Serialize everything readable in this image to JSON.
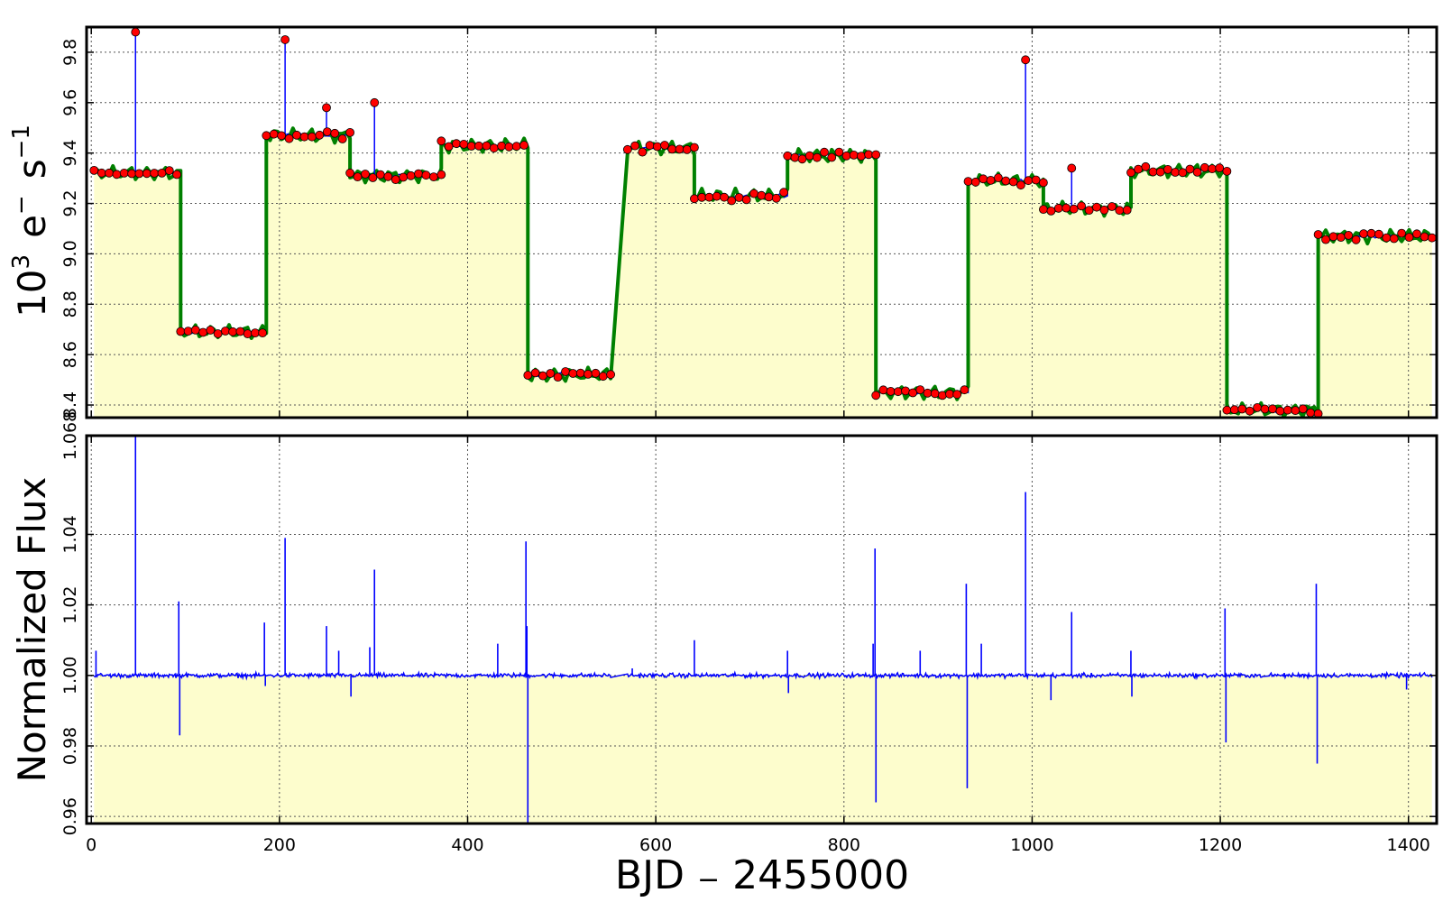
{
  "colors": {
    "fill": "#fdfdcd",
    "raw_line": "#0000ff",
    "model_line": "#008000",
    "marker_face": "#ff0000",
    "marker_edge": "#000000",
    "norm_line": "#0000ff",
    "frame": "#000000",
    "grid": "#555555"
  },
  "chart_data": [
    {
      "type": "line",
      "panel": "top",
      "ylabel_base": "10",
      "ylabel_exp": "3",
      "ylabel_unit": "e",
      "ylabel_unit_sup": "−",
      "ylabel_s": "s",
      "ylabel_s_sup": "−1",
      "xlim": [
        -5,
        1430
      ],
      "ylim": [
        8.35,
        9.9
      ],
      "yticks": [
        8.4,
        8.6,
        8.8,
        9.0,
        9.2,
        9.4,
        9.6,
        9.8
      ],
      "yticklabels": [
        "8.4",
        "8.6",
        "8.8",
        "9.0",
        "9.2",
        "9.4",
        "9.6",
        "9.8"
      ],
      "xticks": [
        0,
        200,
        400,
        600,
        800,
        1000,
        1200,
        1400
      ],
      "grid": true,
      "segments": [
        {
          "x0": 3,
          "x1": 95,
          "level": 9.32
        },
        {
          "x0": 95,
          "x1": 186,
          "level": 8.69
        },
        {
          "x0": 186,
          "x1": 275,
          "level": 9.47
        },
        {
          "x0": 275,
          "x1": 372,
          "level": 9.31
        },
        {
          "x0": 372,
          "x1": 464,
          "level": 9.43
        },
        {
          "x0": 464,
          "x1": 552,
          "level": 8.52
        },
        {
          "x0": 570,
          "x1": 641,
          "level": 9.42
        },
        {
          "x0": 641,
          "x1": 740,
          "level": 9.23
        },
        {
          "x0": 740,
          "x1": 834,
          "level": 9.39
        },
        {
          "x0": 834,
          "x1": 932,
          "level": 8.45
        },
        {
          "x0": 932,
          "x1": 1012,
          "level": 9.29
        },
        {
          "x0": 1012,
          "x1": 1105,
          "level": 9.18
        },
        {
          "x0": 1105,
          "x1": 1207,
          "level": 9.33
        },
        {
          "x0": 1207,
          "x1": 1304,
          "level": 8.38
        },
        {
          "x0": 1304,
          "x1": 1425,
          "level": 9.07
        }
      ],
      "spikes": [
        {
          "x": 47,
          "y": 9.88
        },
        {
          "x": 206,
          "y": 9.85
        },
        {
          "x": 250,
          "y": 9.58
        },
        {
          "x": 301,
          "y": 9.6
        },
        {
          "x": 993,
          "y": 9.77
        },
        {
          "x": 1042,
          "y": 9.34
        }
      ]
    },
    {
      "type": "line",
      "panel": "bottom",
      "ylabel": "Normalized Flux",
      "xlabel_left": "BJD",
      "xlabel_op": "−",
      "xlabel_right": "2455000",
      "xlim": [
        -5,
        1430
      ],
      "ylim": [
        0.958,
        1.068
      ],
      "yticks": [
        0.96,
        0.98,
        1.0,
        1.02,
        1.04,
        1.068
      ],
      "yticklabels": [
        "0.96",
        "0.98",
        "1.00",
        "1.02",
        "1.04",
        "1.068"
      ],
      "xticks": [
        0,
        200,
        400,
        600,
        800,
        1000,
        1200,
        1400
      ],
      "xticklabels": [
        "0",
        "200",
        "400",
        "600",
        "800",
        "1000",
        "1200",
        "1400"
      ],
      "grid": true,
      "baseline": 1.0,
      "segments": [
        [
          3,
          552
        ],
        [
          570,
          1245
        ],
        [
          1252,
          1425
        ]
      ],
      "spikes": [
        {
          "x": 5,
          "y": 1.007
        },
        {
          "x": 47,
          "y": 1.068
        },
        {
          "x": 93,
          "y": 1.021
        },
        {
          "x": 94,
          "y": 0.983
        },
        {
          "x": 184,
          "y": 1.015
        },
        {
          "x": 185,
          "y": 0.997
        },
        {
          "x": 206,
          "y": 1.039
        },
        {
          "x": 250,
          "y": 1.014
        },
        {
          "x": 263,
          "y": 1.007
        },
        {
          "x": 276,
          "y": 0.994
        },
        {
          "x": 296,
          "y": 1.008
        },
        {
          "x": 301,
          "y": 1.03
        },
        {
          "x": 432,
          "y": 1.009
        },
        {
          "x": 462,
          "y": 1.038
        },
        {
          "x": 463,
          "y": 1.014
        },
        {
          "x": 464,
          "y": 0.958
        },
        {
          "x": 575,
          "y": 1.002
        },
        {
          "x": 641,
          "y": 1.01
        },
        {
          "x": 740,
          "y": 1.007
        },
        {
          "x": 741,
          "y": 0.995
        },
        {
          "x": 831,
          "y": 1.009
        },
        {
          "x": 833,
          "y": 1.036
        },
        {
          "x": 834,
          "y": 0.964
        },
        {
          "x": 881,
          "y": 1.007
        },
        {
          "x": 930,
          "y": 1.026
        },
        {
          "x": 931,
          "y": 0.968
        },
        {
          "x": 946,
          "y": 1.009
        },
        {
          "x": 993,
          "y": 1.052
        },
        {
          "x": 1020,
          "y": 0.993
        },
        {
          "x": 1042,
          "y": 1.018
        },
        {
          "x": 1105,
          "y": 1.007
        },
        {
          "x": 1106,
          "y": 0.994
        },
        {
          "x": 1205,
          "y": 1.019
        },
        {
          "x": 1206,
          "y": 0.981
        },
        {
          "x": 1302,
          "y": 1.026
        },
        {
          "x": 1303,
          "y": 0.975
        },
        {
          "x": 1398,
          "y": 0.996
        }
      ]
    }
  ]
}
